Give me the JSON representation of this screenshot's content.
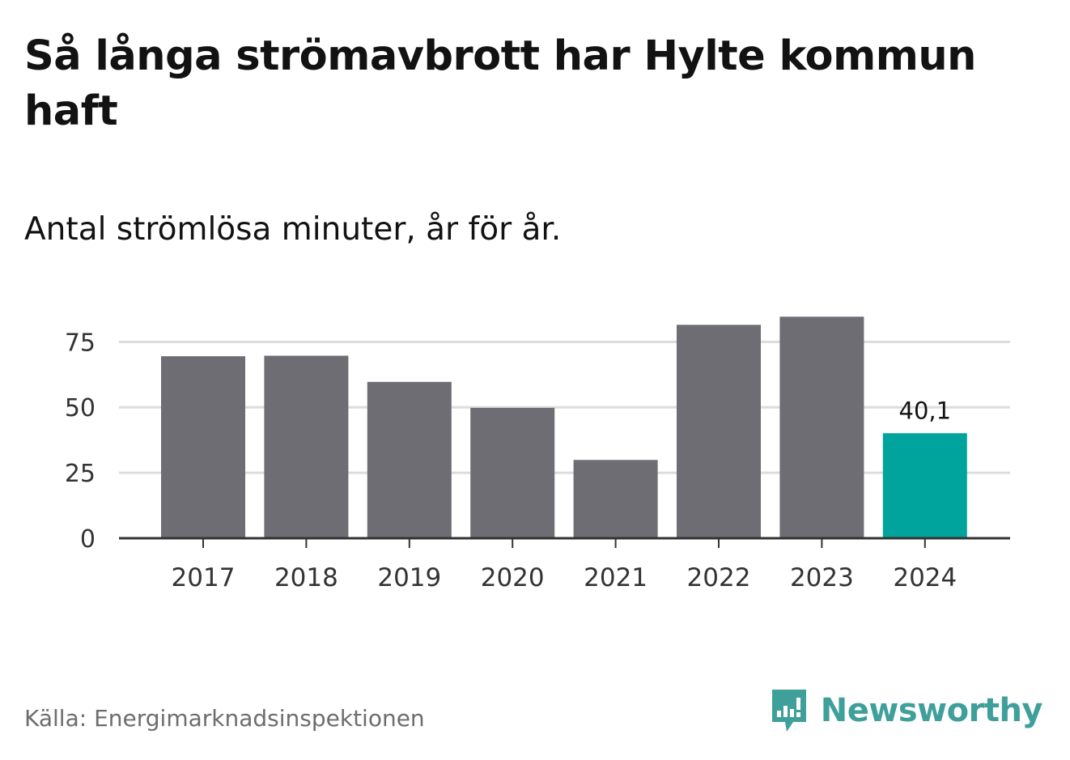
{
  "header": {
    "title": "Så långa strömavbrott har Hylte kommun haft",
    "subtitle": "Antal strömlösa minuter, år för år."
  },
  "footer": {
    "source": "Källa: Energimarknadsinspektionen",
    "brand": "Newsworthy"
  },
  "colors": {
    "bar": "#6e6d73",
    "highlight": "#00a49c",
    "grid": "#dcdcdc",
    "axis": "#333333",
    "brand": "#3f9f9a"
  },
  "chart_data": {
    "type": "bar",
    "categories": [
      "2017",
      "2018",
      "2019",
      "2020",
      "2021",
      "2022",
      "2023",
      "2024"
    ],
    "values": [
      69.5,
      69.7,
      59.7,
      49.8,
      29.9,
      81.5,
      84.6,
      40.1
    ],
    "highlight_index": 7,
    "data_labels": [
      {
        "index": 7,
        "text": "40,1"
      }
    ],
    "yticks": [
      0,
      25,
      50,
      75
    ],
    "ytick_labels": [
      "0",
      "25",
      "50",
      "75"
    ],
    "ylim": [
      0,
      85
    ],
    "grid": true,
    "legend": "none"
  }
}
